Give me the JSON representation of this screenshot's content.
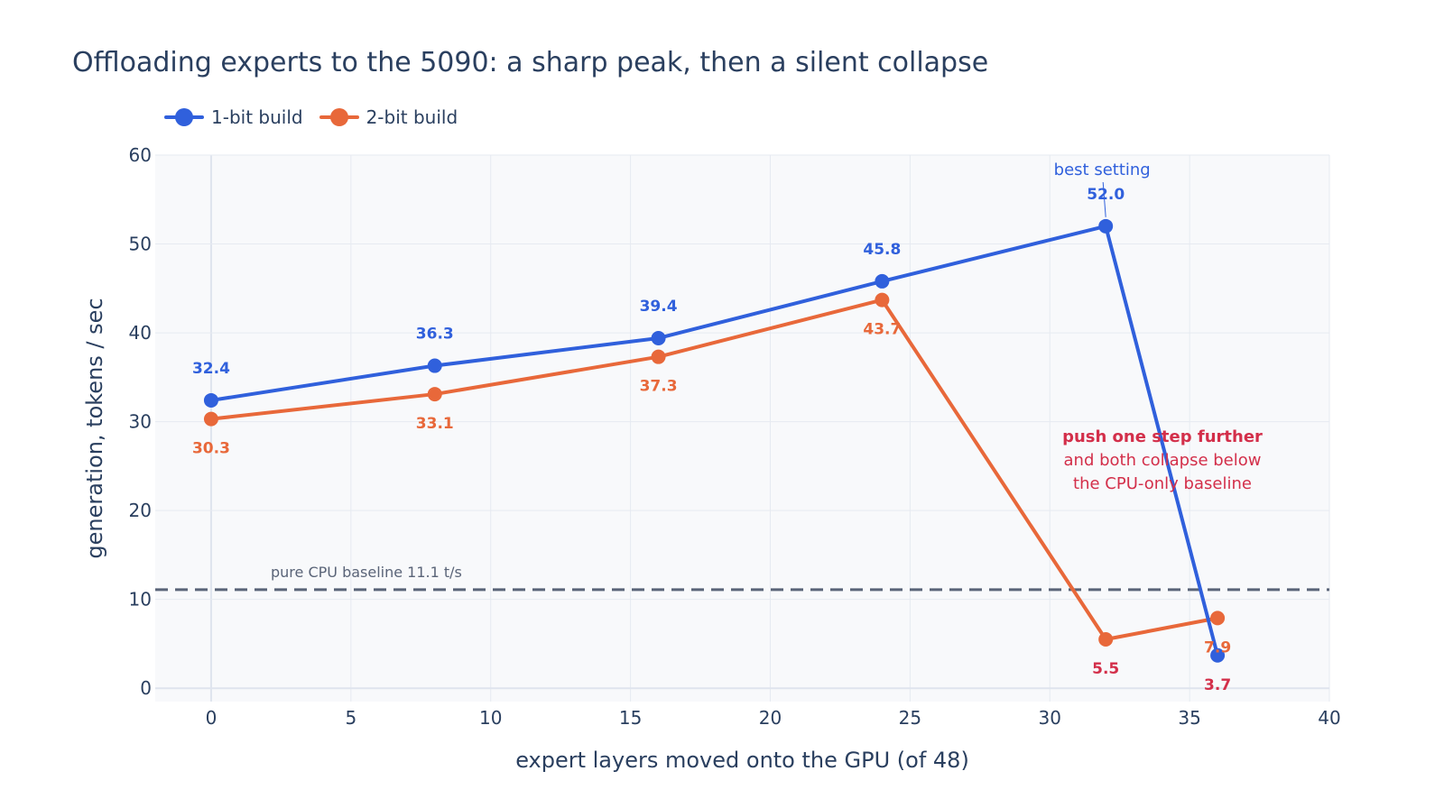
{
  "chart_data": {
    "type": "line",
    "title": "Offloading experts to the 5090: a sharp peak, then a silent collapse",
    "xlabel": "expert layers moved onto the GPU (of 48)",
    "ylabel": "generation, tokens / sec",
    "xlim": [
      -2,
      40
    ],
    "ylim": [
      -1.5,
      60
    ],
    "x_ticks": [
      0,
      5,
      10,
      15,
      20,
      25,
      30,
      35,
      40
    ],
    "y_ticks": [
      0,
      10,
      20,
      30,
      40,
      50,
      60
    ],
    "grid": true,
    "legend_placement": "top-left",
    "series": [
      {
        "name": "1-bit build",
        "color": "#3060dc",
        "x": [
          0,
          8,
          16,
          24,
          32,
          36
        ],
        "y": [
          32.4,
          36.3,
          39.4,
          45.8,
          52.0,
          3.7
        ],
        "labels": [
          "32.4",
          "36.3",
          "39.4",
          "45.8",
          "52.0",
          "3.7"
        ]
      },
      {
        "name": "2-bit build",
        "color": "#e8683a",
        "x": [
          0,
          8,
          16,
          24,
          32,
          36
        ],
        "y": [
          30.3,
          33.1,
          37.3,
          43.7,
          5.5,
          7.9
        ],
        "labels": [
          "30.3",
          "33.1",
          "37.3",
          "43.7",
          "5.5",
          "7.9"
        ]
      }
    ],
    "baseline": {
      "y": 11.1,
      "label": "pure CPU baseline 11.1 t/s",
      "color": "#5a6478"
    },
    "annotations": {
      "best": {
        "text": "best setting",
        "x": 32,
        "y": 52.0,
        "color": "#3060dc"
      },
      "collapse": {
        "bold": "push one step further",
        "line1": "and both collapse below",
        "line2": "the CPU-only baseline",
        "color": "#d32f4a"
      }
    },
    "collapse_label_color": "#d32f4a"
  }
}
